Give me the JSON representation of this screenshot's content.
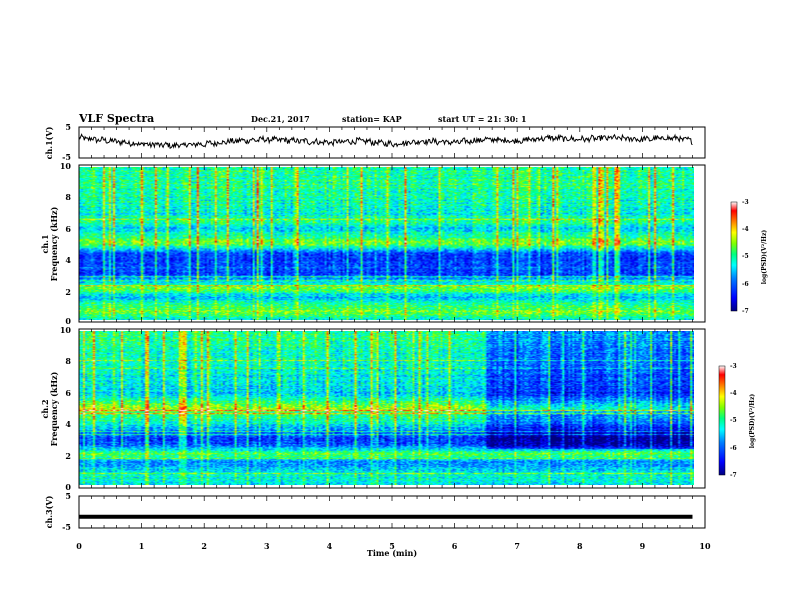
{
  "header": {
    "title": "VLF Spectra",
    "date": "Dec.21, 2017",
    "station": "station= KAP",
    "start_ut": "start  UT =   21: 30: 1"
  },
  "axes": {
    "ch1_label": "ch.1(V)",
    "ch1_spec_label": "ch.1\nFrequency (kHz)",
    "ch2_spec_label": "ch.2\nFrequency (kHz)",
    "ch3_label": "ch.3(V)",
    "xlabel": "Time  (min)",
    "colorbar_label": "log(PSD)(V²/Hz)"
  },
  "colors": {
    "background": "#ffffff",
    "axis": "#000000",
    "colormap": [
      "#000080",
      "#0000ff",
      "#0080ff",
      "#00ffff",
      "#00ff80",
      "#80ff00",
      "#ffff00",
      "#ff8000",
      "#ff0000",
      "#ffffff"
    ]
  },
  "chart_data": [
    {
      "type": "line",
      "name": "ch.1 waveform",
      "ylabel": "ch.1(V)",
      "ylim": [
        -5,
        5
      ],
      "yticks": [
        "5",
        "-5"
      ],
      "xlim": [
        0,
        10
      ],
      "x": [
        0.0,
        0.5,
        1.0,
        1.5,
        2.0,
        2.5,
        3.0,
        3.5,
        4.0,
        4.5,
        5.0,
        5.5,
        6.0,
        6.5,
        7.0,
        7.5,
        8.0,
        8.5,
        9.0,
        9.5,
        9.8
      ],
      "y": [
        1.5,
        0.5,
        -0.5,
        -1.0,
        -0.5,
        0.5,
        1.0,
        0.5,
        0.0,
        0.5,
        -0.5,
        0.5,
        0.0,
        1.0,
        0.5,
        1.5,
        1.0,
        1.5,
        1.0,
        1.5,
        0.5
      ]
    },
    {
      "type": "heatmap",
      "name": "ch.1 spectrogram",
      "ylabel": "ch.1 Frequency (kHz)",
      "xlim": [
        0,
        10
      ],
      "ylim": [
        0,
        10
      ],
      "yticks": [
        "0",
        "2",
        "4",
        "6",
        "8",
        "10"
      ],
      "data_xlim": [
        0,
        9.8
      ],
      "colorbar": {
        "label": "log(PSD)(V²/Hz)",
        "range": [
          -7,
          -3
        ],
        "ticks": [
          "-3",
          "-4",
          "-5",
          "-6",
          "-7"
        ]
      },
      "band_profile_khz": [
        [
          0,
          -5.2
        ],
        [
          0.5,
          -4.6
        ],
        [
          1.0,
          -5.0
        ],
        [
          1.5,
          -5.6
        ],
        [
          2.0,
          -4.6
        ],
        [
          2.5,
          -5.4
        ],
        [
          3.0,
          -6.2
        ],
        [
          3.5,
          -6.0
        ],
        [
          4.0,
          -6.3
        ],
        [
          4.5,
          -5.9
        ],
        [
          5.0,
          -4.5
        ],
        [
          5.5,
          -5.0
        ],
        [
          6.0,
          -5.4
        ],
        [
          6.5,
          -4.9
        ],
        [
          7.0,
          -5.2
        ],
        [
          8.0,
          -5.1
        ],
        [
          9.0,
          -5.0
        ],
        [
          10.0,
          -5.0
        ]
      ],
      "time_change_min": 6.5,
      "after_change_offset": 0.0
    },
    {
      "type": "heatmap",
      "name": "ch.2 spectrogram",
      "ylabel": "ch.2 Frequency (kHz)",
      "xlim": [
        0,
        10
      ],
      "ylim": [
        0,
        10
      ],
      "yticks": [
        "0",
        "2",
        "4",
        "6",
        "8",
        "10"
      ],
      "data_xlim": [
        0,
        9.8
      ],
      "colorbar": {
        "label": "log(PSD)(V²/Hz)",
        "range": [
          -7,
          -3
        ],
        "ticks": [
          "-3",
          "-4",
          "-5",
          "-6",
          "-7"
        ]
      },
      "band_profile_khz": [
        [
          0,
          -5.3
        ],
        [
          0.5,
          -5.2
        ],
        [
          1.0,
          -5.5
        ],
        [
          1.5,
          -5.8
        ],
        [
          2.0,
          -4.6
        ],
        [
          2.5,
          -6.0
        ],
        [
          3.0,
          -6.3
        ],
        [
          3.5,
          -5.8
        ],
        [
          4.0,
          -5.2
        ],
        [
          4.5,
          -4.9
        ],
        [
          5.0,
          -4.4
        ],
        [
          5.5,
          -5.0
        ],
        [
          6.0,
          -5.5
        ],
        [
          7.0,
          -5.3
        ],
        [
          8.0,
          -5.2
        ],
        [
          9.0,
          -5.0
        ],
        [
          10.0,
          -5.0
        ]
      ],
      "time_change_min": 6.5,
      "after_change_offset": -0.8
    },
    {
      "type": "line",
      "name": "ch.3 waveform",
      "ylabel": "ch.3(V)",
      "ylim": [
        -5,
        5
      ],
      "yticks": [
        "5",
        "-5"
      ],
      "xlim": [
        0,
        10
      ],
      "x": [
        0,
        9.8
      ],
      "y": [
        -1.5,
        -1.5
      ]
    },
    {
      "type": "axis",
      "name": "time axis",
      "xlabel": "Time  (min)",
      "xticks": [
        "0",
        "1",
        "2",
        "3",
        "4",
        "5",
        "6",
        "7",
        "8",
        "9",
        "10"
      ]
    }
  ]
}
